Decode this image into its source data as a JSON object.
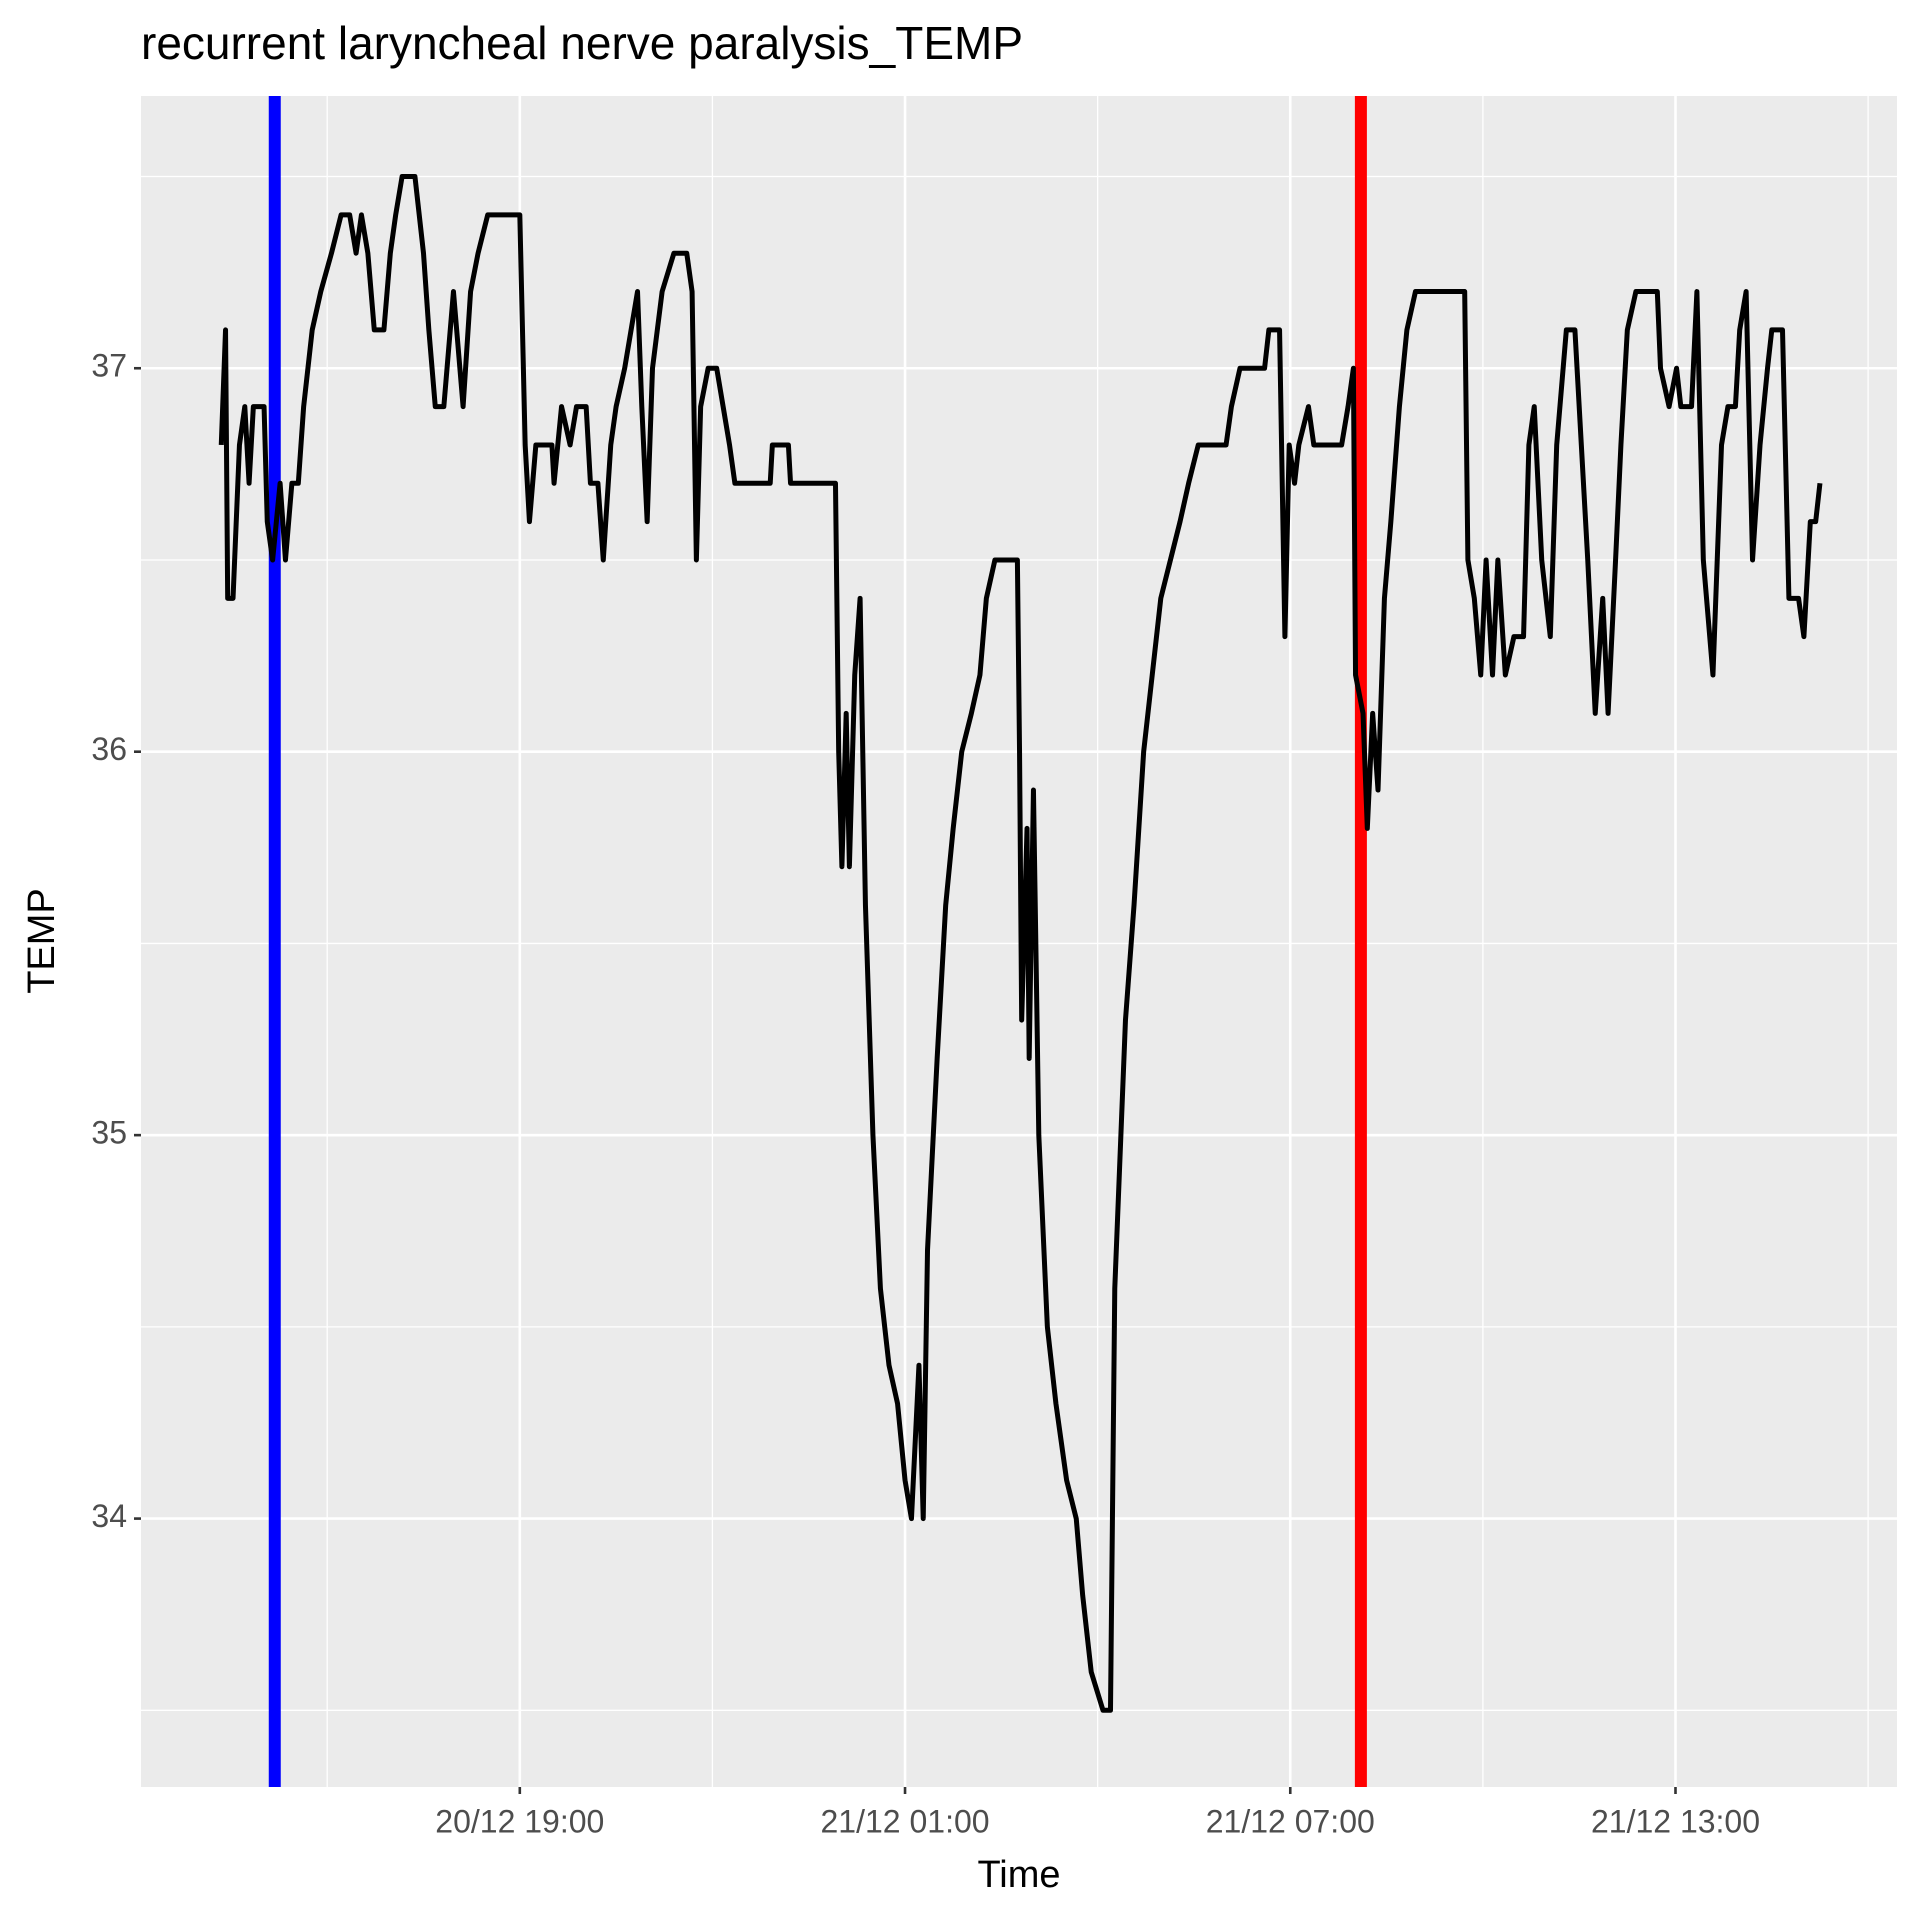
{
  "chart_data": {
    "type": "line",
    "title": "recurrent laryncheal nerve paralysis_TEMP",
    "xlabel": "Time",
    "ylabel": "TEMP",
    "x": [
      "20/12 14:21",
      "20/12 14:25",
      "20/12 14:27",
      "20/12 14:32",
      "20/12 14:38",
      "20/12 14:43",
      "20/12 14:47",
      "20/12 14:51",
      "20/12 15:01",
      "20/12 15:04",
      "20/12 15:09",
      "20/12 15:16",
      "20/12 15:21",
      "20/12 15:27",
      "20/12 15:33",
      "20/12 15:38",
      "20/12 15:46",
      "20/12 15:54",
      "20/12 16:04",
      "20/12 16:13",
      "20/12 16:21",
      "20/12 16:27",
      "20/12 16:32",
      "20/12 16:38",
      "20/12 16:44",
      "20/12 16:53",
      "20/12 16:59",
      "20/12 17:04",
      "20/12 17:10",
      "20/12 17:22",
      "20/12 17:30",
      "20/12 17:35",
      "20/12 17:41",
      "20/12 17:49",
      "20/12 17:58",
      "20/12 18:07",
      "20/12 18:14",
      "20/12 18:21",
      "20/12 18:30",
      "20/12 19:00",
      "20/12 19:05",
      "20/12 19:09",
      "20/12 19:15",
      "20/12 19:30",
      "20/12 19:32",
      "20/12 19:39",
      "20/12 19:47",
      "20/12 19:53",
      "20/12 20:02",
      "20/12 20:06",
      "20/12 20:13",
      "20/12 20:18",
      "20/12 20:25",
      "20/12 20:30",
      "20/12 20:38",
      "20/12 20:44",
      "20/12 20:50",
      "20/12 20:54",
      "20/12 20:59",
      "20/12 21:04",
      "20/12 21:13",
      "20/12 21:24",
      "20/12 21:36",
      "20/12 21:41",
      "20/12 21:45",
      "20/12 21:49",
      "20/12 21:56",
      "20/12 22:04",
      "20/12 22:10",
      "20/12 22:16",
      "20/12 22:21",
      "20/12 22:54",
      "20/12 22:56",
      "20/12 23:11",
      "20/12 23:13",
      "20/12 23:55",
      "20/12 23:58",
      "21/12 00:01",
      "21/12 00:05",
      "21/12 00:08",
      "21/12 00:13",
      "21/12 00:18",
      "21/12 00:23",
      "21/12 00:30",
      "21/12 00:37",
      "21/12 00:45",
      "21/12 00:53",
      "21/12 01:00",
      "21/12 01:06",
      "21/12 01:13",
      "21/12 01:17",
      "21/12 01:21",
      "21/12 01:30",
      "21/12 01:38",
      "21/12 01:45",
      "21/12 01:53",
      "21/12 02:02",
      "21/12 02:10",
      "21/12 02:16",
      "21/12 02:24",
      "21/12 02:45",
      "21/12 02:47",
      "21/12 02:49",
      "21/12 02:54",
      "21/12 02:56",
      "21/12 03:00",
      "21/12 03:05",
      "21/12 03:13",
      "21/12 03:21",
      "21/12 03:31",
      "21/12 03:40",
      "21/12 03:46",
      "21/12 03:54",
      "21/12 04:05",
      "21/12 04:12",
      "21/12 04:16",
      "21/12 04:26",
      "21/12 04:34",
      "21/12 04:43",
      "21/12 04:51",
      "21/12 04:59",
      "21/12 05:08",
      "21/12 05:17",
      "21/12 05:25",
      "21/12 05:34",
      "21/12 06:00",
      "21/12 06:05",
      "21/12 06:13",
      "21/12 06:36",
      "21/12 06:40",
      "21/12 06:50",
      "21/12 06:55",
      "21/12 06:59",
      "21/12 07:04",
      "21/12 07:08",
      "21/12 07:17",
      "21/12 07:22",
      "21/12 07:48",
      "21/12 07:54",
      "21/12 07:59",
      "21/12 08:01",
      "21/12 08:08",
      "21/12 08:12",
      "21/12 08:17",
      "21/12 08:22",
      "21/12 08:28",
      "21/12 08:34",
      "21/12 08:42",
      "21/12 08:49",
      "21/12 08:57",
      "21/12 09:43",
      "21/12 09:46",
      "21/12 09:52",
      "21/12 09:58",
      "21/12 10:03",
      "21/12 10:09",
      "21/12 10:14",
      "21/12 10:21",
      "21/12 10:29",
      "21/12 10:38",
      "21/12 10:43",
      "21/12 10:48",
      "21/12 10:55",
      "21/12 11:03",
      "21/12 11:09",
      "21/12 11:18",
      "21/12 11:26",
      "21/12 11:32",
      "21/12 11:38",
      "21/12 11:45",
      "21/12 11:52",
      "21/12 11:57",
      "21/12 12:04",
      "21/12 12:09",
      "21/12 12:15",
      "21/12 12:23",
      "21/12 12:43",
      "21/12 12:46",
      "21/12 12:54",
      "21/12 13:01",
      "21/12 13:05",
      "21/12 13:15",
      "21/12 13:20",
      "21/12 13:26",
      "21/12 13:35",
      "21/12 13:43",
      "21/12 13:49",
      "21/12 13:56",
      "21/12 14:00",
      "21/12 14:06",
      "21/12 14:12",
      "21/12 14:19",
      "21/12 14:26",
      "21/12 14:30",
      "21/12 14:40",
      "21/12 14:46",
      "21/12 14:55",
      "21/12 15:00",
      "21/12 15:06",
      "21/12 15:11",
      "21/12 15:15"
    ],
    "values": [
      36.8,
      37.1,
      36.4,
      36.4,
      36.8,
      36.9,
      36.7,
      36.9,
      36.9,
      36.6,
      36.5,
      36.7,
      36.5,
      36.7,
      36.7,
      36.9,
      37.1,
      37.2,
      37.3,
      37.4,
      37.4,
      37.3,
      37.4,
      37.3,
      37.1,
      37.1,
      37.3,
      37.4,
      37.5,
      37.5,
      37.3,
      37.1,
      36.9,
      36.9,
      37.2,
      36.9,
      37.2,
      37.3,
      37.4,
      37.4,
      36.8,
      36.6,
      36.8,
      36.8,
      36.7,
      36.9,
      36.8,
      36.9,
      36.9,
      36.7,
      36.7,
      36.5,
      36.8,
      36.9,
      37,
      37.1,
      37.2,
      36.9,
      36.6,
      37,
      37.2,
      37.3,
      37.3,
      37.2,
      36.5,
      36.9,
      37,
      37,
      36.9,
      36.8,
      36.7,
      36.7,
      36.8,
      36.8,
      36.7,
      36.7,
      36,
      35.7,
      36.1,
      35.7,
      36.2,
      36.4,
      35.6,
      35,
      34.6,
      34.4,
      34.3,
      34.1,
      34,
      34.4,
      34,
      34.7,
      35.2,
      35.6,
      35.8,
      36,
      36.1,
      36.2,
      36.4,
      36.5,
      36.5,
      36,
      35.3,
      35.8,
      35.2,
      35.9,
      35,
      34.5,
      34.3,
      34.1,
      34,
      33.8,
      33.6,
      33.5,
      33.5,
      34.6,
      35.3,
      35.6,
      36,
      36.2,
      36.4,
      36.5,
      36.6,
      36.7,
      36.8,
      36.8,
      36.9,
      37,
      37,
      37.1,
      37.1,
      36.3,
      36.8,
      36.7,
      36.8,
      36.9,
      36.8,
      36.8,
      36.9,
      37,
      36.2,
      36.1,
      35.8,
      36.1,
      35.9,
      36.4,
      36.6,
      36.9,
      37.1,
      37.2,
      37.2,
      36.5,
      36.4,
      36.2,
      36.5,
      36.2,
      36.5,
      36.2,
      36.3,
      36.3,
      36.8,
      36.9,
      36.5,
      36.3,
      36.8,
      37.1,
      37.1,
      36.8,
      36.5,
      36.1,
      36.4,
      36.1,
      36.5,
      36.8,
      37.1,
      37.2,
      37.2,
      37,
      36.9,
      37,
      36.9,
      36.9,
      37.2,
      36.5,
      36.2,
      36.8,
      36.9,
      36.9,
      37.1,
      37.2,
      36.5,
      36.8,
      37,
      37.1,
      37.1,
      36.4,
      36.4,
      36.3,
      36.6,
      36.6,
      36.7
    ],
    "color": "#000000",
    "vlines": [
      {
        "x": "20/12 15:11",
        "color": "#0000ff"
      },
      {
        "x": "21/12 08:06",
        "color": "#ff0000"
      }
    ],
    "xlim": [
      "20/12 13:06",
      "21/12 16:27"
    ],
    "xticks": [
      "20/12 19:00",
      "21/12 01:00",
      "21/12 07:00",
      "21/12 13:00"
    ],
    "ylim": [
      33.3,
      37.71
    ],
    "yticks": [
      34,
      35,
      36,
      37
    ],
    "grid": true
  }
}
